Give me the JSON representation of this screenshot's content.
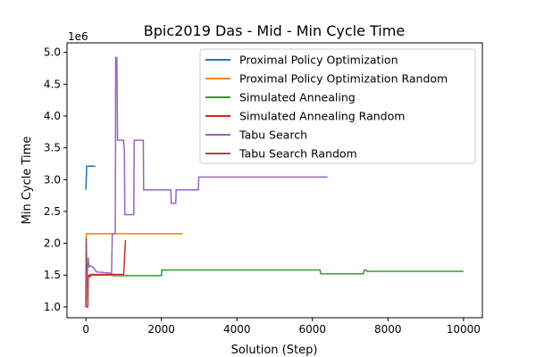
{
  "chart_data": {
    "type": "line",
    "title": "Bpic2019 Das - Mid - Min Cycle Time",
    "xlabel": "Solution (Step)",
    "ylabel": "Min Cycle Time",
    "y_scale_label": "1e6",
    "xlim": [
      -500,
      10500
    ],
    "ylim": [
      0.83,
      5.15
    ],
    "x_ticks": [
      0,
      2000,
      4000,
      6000,
      8000,
      10000
    ],
    "x_tick_labels": [
      "0",
      "2000",
      "4000",
      "6000",
      "8000",
      "10000"
    ],
    "y_ticks": [
      1.0,
      1.5,
      2.0,
      2.5,
      3.0,
      3.5,
      4.0,
      4.5,
      5.0
    ],
    "y_tick_labels": [
      "1.0",
      "1.5",
      "2.0",
      "2.5",
      "3.0",
      "3.5",
      "4.0",
      "4.5",
      "5.0"
    ],
    "grid": false,
    "legend_position": "top-right",
    "series": [
      {
        "name": "Proximal Policy Optimization",
        "color": "#1f77b4",
        "points": [
          [
            0,
            2.84
          ],
          [
            20,
            3.21
          ],
          [
            250,
            3.21
          ]
        ]
      },
      {
        "name": "Proximal Policy Optimization Random",
        "color": "#ff7f0e",
        "points": [
          [
            0,
            1.25
          ],
          [
            10,
            2.15
          ],
          [
            2560,
            2.15
          ]
        ]
      },
      {
        "name": "Simulated Annealing",
        "color": "#2ca02c",
        "points": [
          [
            0,
            1.12
          ],
          [
            10,
            1.5
          ],
          [
            700,
            1.5
          ],
          [
            720,
            1.49
          ],
          [
            2000,
            1.49
          ],
          [
            2010,
            1.58
          ],
          [
            6200,
            1.58
          ],
          [
            6220,
            1.52
          ],
          [
            7350,
            1.52
          ],
          [
            7370,
            1.58
          ],
          [
            7420,
            1.58
          ],
          [
            7440,
            1.56
          ],
          [
            10000,
            1.56
          ]
        ]
      },
      {
        "name": "Simulated Annealing Random",
        "color": "#d62728",
        "points": [
          [
            0,
            1.0
          ],
          [
            50,
            1.0
          ],
          [
            60,
            1.48
          ],
          [
            120,
            1.48
          ],
          [
            130,
            1.51
          ],
          [
            1000,
            1.51
          ],
          [
            1050,
            2.05
          ]
        ]
      },
      {
        "name": "Tabu Search",
        "color": "#9467bd",
        "points": [
          [
            0,
            1.0
          ],
          [
            40,
            1.55
          ],
          [
            60,
            1.78
          ],
          [
            80,
            1.62
          ],
          [
            100,
            1.65
          ],
          [
            200,
            1.62
          ],
          [
            280,
            1.55
          ],
          [
            680,
            1.53
          ],
          [
            700,
            2.15
          ],
          [
            780,
            2.15
          ],
          [
            790,
            4.92
          ],
          [
            820,
            4.92
          ],
          [
            840,
            3.62
          ],
          [
            1000,
            3.62
          ],
          [
            1020,
            3.43
          ],
          [
            1030,
            2.45
          ],
          [
            1270,
            2.45
          ],
          [
            1280,
            3.62
          ],
          [
            1520,
            3.62
          ],
          [
            1530,
            2.84
          ],
          [
            2250,
            2.84
          ],
          [
            2260,
            2.63
          ],
          [
            2380,
            2.63
          ],
          [
            2390,
            2.84
          ],
          [
            2980,
            2.84
          ],
          [
            2990,
            3.04
          ],
          [
            6400,
            3.04
          ]
        ]
      },
      {
        "name": "Tabu Search Random",
        "color": "#8c564b",
        "points": [
          [
            0,
            1.0
          ],
          [
            10,
            2.08
          ],
          [
            20,
            1.55
          ],
          [
            40,
            1.5
          ]
        ]
      }
    ]
  }
}
